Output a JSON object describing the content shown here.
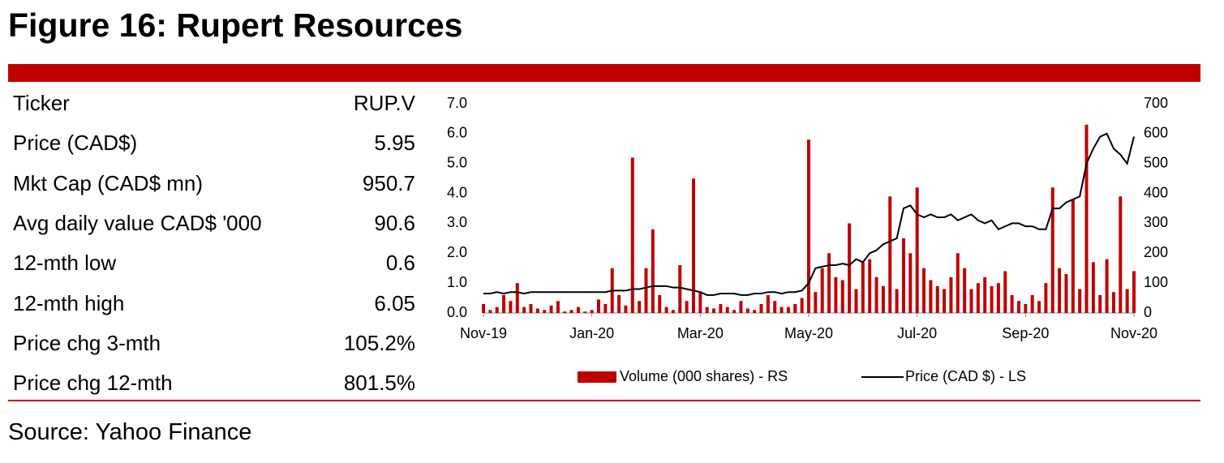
{
  "header": {
    "title": "Figure 16: Rupert Resources"
  },
  "table": {
    "rows": [
      [
        "Ticker",
        "RUP.V"
      ],
      [
        "Price (CAD$)",
        "5.95"
      ],
      [
        "Mkt Cap (CAD$ mn)",
        "950.7"
      ],
      [
        "Avg daily value CAD$ '000",
        "90.6"
      ],
      [
        "12-mth low",
        "0.6"
      ],
      [
        "12-mth high",
        "6.05"
      ],
      [
        "Price chg 3-mth",
        "105.2%"
      ],
      [
        "Price chg 12-mth",
        "801.5%"
      ]
    ]
  },
  "footer": {
    "source": "Source: Yahoo Finance"
  },
  "chart_data": {
    "type": "bar-line",
    "categories": [
      "Nov-19",
      null,
      null,
      null,
      null,
      null,
      null,
      null,
      null,
      null,
      null,
      null,
      null,
      null,
      null,
      null,
      "Jan-20",
      null,
      null,
      null,
      null,
      null,
      null,
      null,
      null,
      null,
      null,
      null,
      null,
      null,
      null,
      null,
      "Mar-20",
      null,
      null,
      null,
      null,
      null,
      null,
      null,
      null,
      null,
      null,
      null,
      null,
      null,
      null,
      null,
      "May-20",
      null,
      null,
      null,
      null,
      null,
      null,
      null,
      null,
      null,
      null,
      null,
      null,
      null,
      null,
      null,
      "Jul-20",
      null,
      null,
      null,
      null,
      null,
      null,
      null,
      null,
      null,
      null,
      null,
      null,
      null,
      null,
      null,
      "Sep-20",
      null,
      null,
      null,
      null,
      null,
      null,
      null,
      null,
      null,
      null,
      null,
      null,
      null,
      null,
      null,
      "Nov-20"
    ],
    "series": [
      {
        "name": "Volume (000 shares) - RS",
        "type": "bar",
        "axis": "y2",
        "color": "#c00000",
        "values": [
          30,
          10,
          20,
          60,
          40,
          100,
          20,
          30,
          15,
          10,
          25,
          40,
          5,
          10,
          20,
          5,
          10,
          45,
          30,
          150,
          60,
          25,
          520,
          40,
          150,
          280,
          60,
          20,
          10,
          160,
          40,
          450,
          70,
          20,
          15,
          30,
          20,
          10,
          40,
          15,
          10,
          30,
          60,
          40,
          20,
          20,
          30,
          50,
          580,
          70,
          150,
          200,
          120,
          110,
          300,
          80,
          170,
          180,
          120,
          90,
          390,
          80,
          250,
          200,
          420,
          150,
          110,
          90,
          80,
          120,
          200,
          150,
          80,
          100,
          120,
          90,
          100,
          140,
          60,
          40,
          30,
          60,
          40,
          100,
          420,
          150,
          130,
          380,
          80,
          630,
          170,
          60,
          180,
          70,
          390,
          80,
          140
        ]
      },
      {
        "name": "Price (CAD $) - LS",
        "type": "line",
        "color": "#000000",
        "values": [
          0.65,
          0.65,
          0.7,
          0.65,
          0.7,
          0.7,
          0.65,
          0.7,
          0.7,
          0.7,
          0.7,
          0.7,
          0.7,
          0.7,
          0.7,
          0.7,
          0.7,
          0.7,
          0.7,
          0.75,
          0.75,
          0.75,
          0.8,
          0.8,
          0.85,
          0.9,
          0.9,
          0.9,
          0.85,
          0.85,
          0.8,
          0.75,
          0.7,
          0.6,
          0.6,
          0.65,
          0.65,
          0.65,
          0.6,
          0.6,
          0.65,
          0.65,
          0.7,
          0.7,
          0.65,
          0.7,
          0.7,
          0.75,
          1.0,
          1.5,
          1.55,
          1.6,
          1.6,
          1.65,
          1.6,
          1.8,
          1.7,
          2.0,
          2.1,
          2.3,
          2.4,
          2.5,
          3.5,
          3.6,
          3.3,
          3.2,
          3.3,
          3.2,
          3.2,
          3.3,
          3.1,
          3.2,
          3.3,
          3.1,
          3.0,
          3.1,
          2.8,
          2.9,
          3.0,
          3.0,
          2.9,
          2.9,
          2.8,
          2.8,
          3.5,
          3.5,
          3.7,
          3.8,
          3.9,
          5.0,
          5.5,
          5.9,
          6.0,
          5.5,
          5.3,
          5.0,
          5.9
        ]
      }
    ],
    "ylim": [
      0,
      7
    ],
    "yticks": [
      {
        "value": 0,
        "label": "0.0"
      },
      {
        "value": 1,
        "label": "1.0"
      },
      {
        "value": 2,
        "label": "2.0"
      },
      {
        "value": 3,
        "label": "3.0"
      },
      {
        "value": 4,
        "label": "4.0"
      },
      {
        "value": 5,
        "label": "5.0"
      },
      {
        "value": 6,
        "label": "6.0"
      },
      {
        "value": 7,
        "label": "7.0"
      }
    ],
    "y2lim": [
      0,
      700
    ],
    "y2ticks": [
      0,
      100,
      200,
      300,
      400,
      500,
      600,
      700
    ],
    "legend": "bottom"
  }
}
